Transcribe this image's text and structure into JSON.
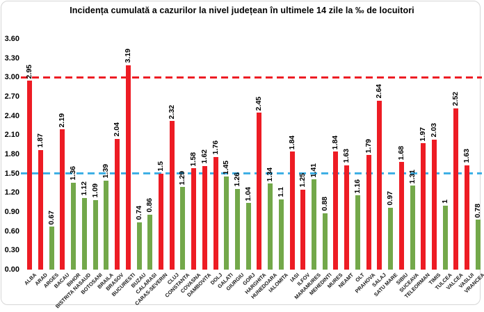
{
  "chart_data": {
    "type": "bar",
    "title": "Incidența cumulată a cazurilor la nivel județean în ultimele 14 zile la ‰ de locuitori",
    "xlabel": "",
    "ylabel": "",
    "ylim": [
      0,
      3.6
    ],
    "ytick_interval": 0.3,
    "yticks": [
      "3.60",
      "3.30",
      "3.00",
      "2.70",
      "2.40",
      "2.10",
      "1.80",
      "1.50",
      "1.20",
      "0.90",
      "0.60",
      "0.30",
      "0.00"
    ],
    "grid": false,
    "legend": "none",
    "x_label_rotation": 45,
    "bar_label_rotation": "vertical",
    "palette": {
      "red": "#ED1C24",
      "green": "#73A84A"
    },
    "thresholds": [
      {
        "name": "red-dashed-threshold",
        "value": 3.0,
        "color": "#ED1C24",
        "style": "dashed"
      },
      {
        "name": "blue-dashed-threshold",
        "value": 1.5,
        "color": "#3FAFE4",
        "style": "dashed"
      }
    ],
    "categories": [
      "ALBA",
      "ARAD",
      "ARGES",
      "BACAU",
      "BIHOR",
      "BISTRITA NASAUD",
      "BOTOSANI",
      "BRAILA",
      "BRASOV",
      "BUCURESTI",
      "BUZAU",
      "CALARASI",
      "CARAS-SEVERIN",
      "CLUJ",
      "CONSTANTA",
      "COVASNA",
      "DAMBOVITA",
      "DOLJ",
      "GALATI",
      "GIURGIU",
      "GORJ",
      "HARGHITA",
      "HUNEDOARA",
      "IALOMITA",
      "IASI",
      "ILFOV",
      "MARAMURES",
      "MEHEDINTI",
      "MURES",
      "NEAMT",
      "OLT",
      "PRAHOVA",
      "SALAJ",
      "SATU MARE",
      "SIBIU",
      "SUCEAVA",
      "TELEORMAN",
      "TIMIS",
      "TULCEA",
      "VALCEA",
      "VASLUI",
      "VRANCEA"
    ],
    "values": [
      2.95,
      1.87,
      0.67,
      2.19,
      1.36,
      1.12,
      1.09,
      1.39,
      2.04,
      3.19,
      0.74,
      0.86,
      1.5,
      2.32,
      1.29,
      1.58,
      1.62,
      1.76,
      1.45,
      1.26,
      1.04,
      2.45,
      1.34,
      1.1,
      1.84,
      1.25,
      1.41,
      0.88,
      1.84,
      1.63,
      1.16,
      1.79,
      2.64,
      0.97,
      1.68,
      1.31,
      1.97,
      2.03,
      1,
      2.52,
      1.63,
      0.78
    ],
    "value_labels": [
      "2.95",
      "1.87",
      "0.67",
      "2.19",
      "1.36",
      "1.12",
      "1.09",
      "1.39",
      "2.04",
      "3.19",
      "0.74",
      "0.86",
      "1.5",
      "2.32",
      "1.29",
      "1.58",
      "1.62",
      "1.76",
      "1.45",
      "1.26",
      "1.04",
      "2.45",
      "1.34",
      "1.1",
      "1.84",
      "1.25",
      "1.41",
      "0.88",
      "1.84",
      "1.63",
      "1.16",
      "1.79",
      "2.64",
      "0.97",
      "1.68",
      "1.31",
      "1.97",
      "2.03",
      "1",
      "2.52",
      "1.63",
      "0.78"
    ],
    "colors": [
      "red",
      "red",
      "green",
      "red",
      "green",
      "green",
      "green",
      "green",
      "red",
      "red",
      "green",
      "green",
      "red",
      "red",
      "green",
      "red",
      "red",
      "red",
      "green",
      "green",
      "green",
      "red",
      "green",
      "green",
      "red",
      "red",
      "green",
      "green",
      "red",
      "red",
      "green",
      "red",
      "red",
      "green",
      "red",
      "green",
      "red",
      "red",
      "green",
      "red",
      "red",
      "green"
    ]
  }
}
